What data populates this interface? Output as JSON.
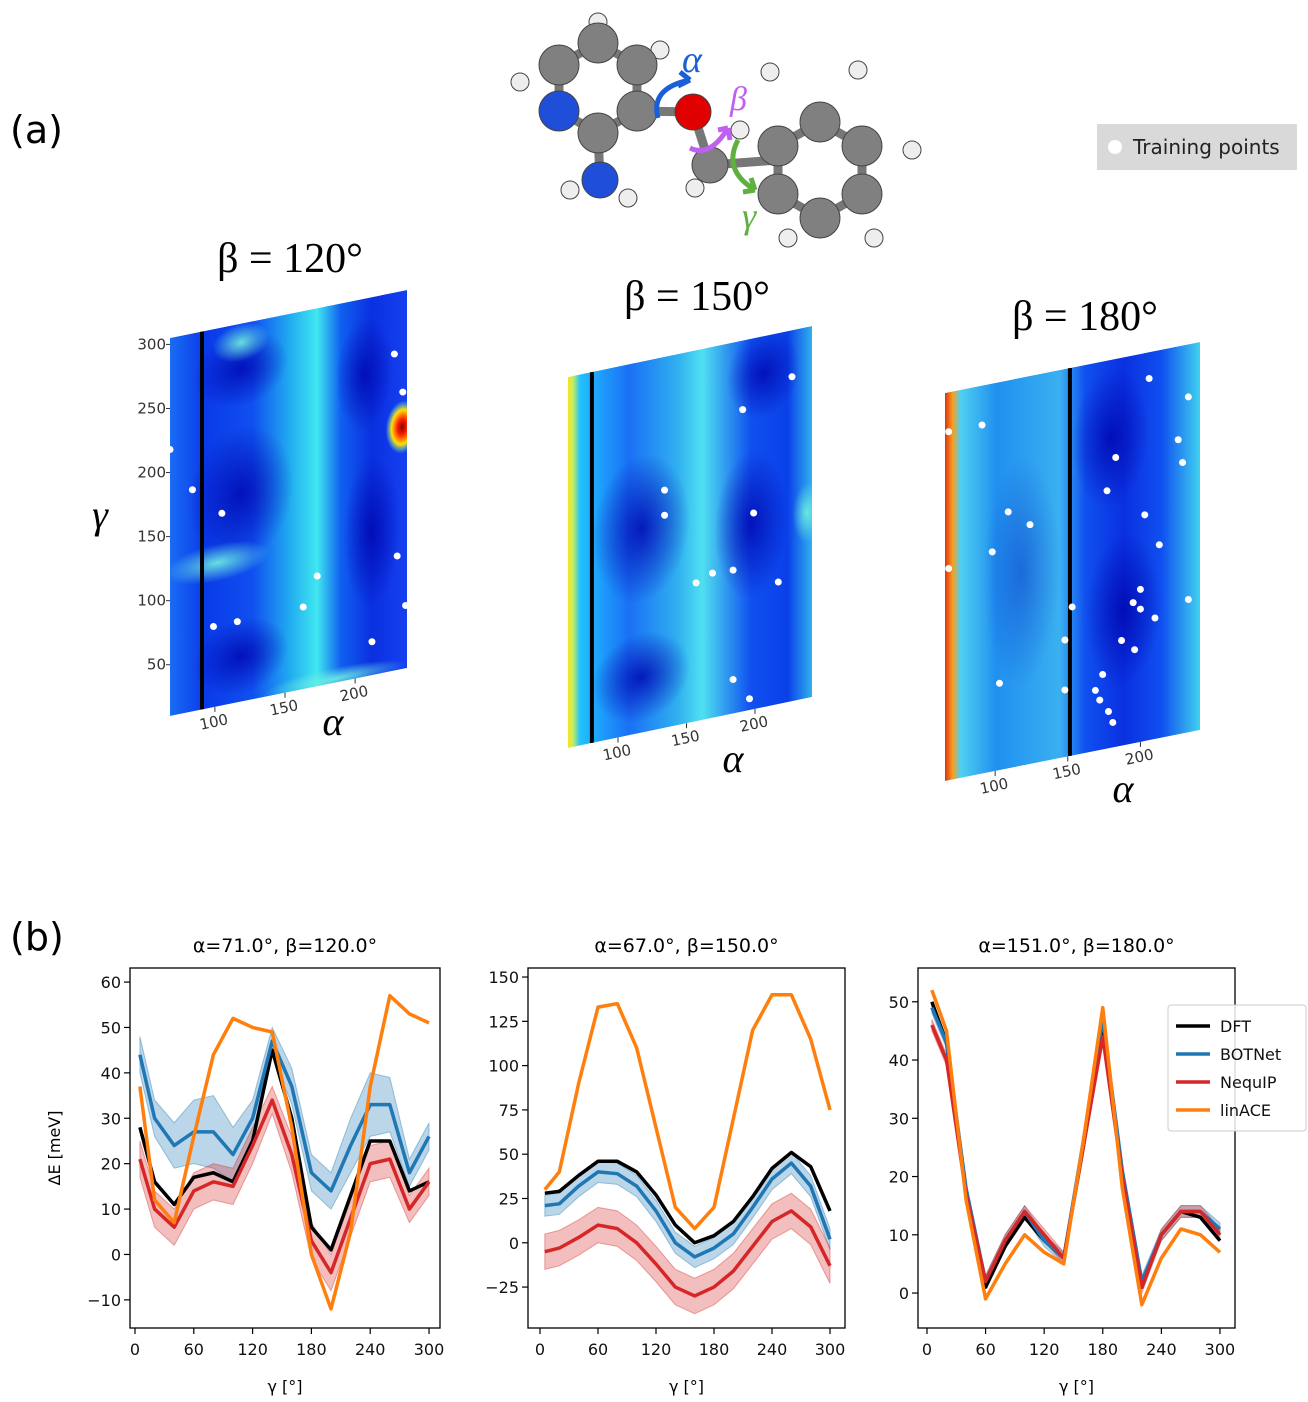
{
  "panel_labels": [
    "(a)",
    "(b)"
  ],
  "molecule": {
    "labels": [
      "α",
      "β",
      "γ"
    ]
  },
  "legend": "Training points",
  "chart_data": [
    {
      "type": "heatmap",
      "title": "β = 120°",
      "xlabel": "α",
      "ylabel": "γ",
      "xlim": [
        68,
        237
      ],
      "ylim": [
        10,
        305
      ],
      "xticks": [
        100,
        150,
        200
      ],
      "yticks": [
        50,
        100,
        150,
        200,
        250,
        300
      ],
      "points": {
        "x": [
          228,
          234,
          68,
          84,
          105,
          230,
          173,
          163,
          99,
          116,
          212,
          236
        ],
        "y": [
          257,
          226,
          218,
          183,
          160,
          99,
          96,
          74,
          73,
          73,
          36,
          59
        ]
      }
    },
    {
      "type": "heatmap",
      "title": "β = 150°",
      "xlabel": "α",
      "xlim": [
        63.5,
        241.6
      ],
      "ylim": [
        10,
        305
      ],
      "xticks": [
        100,
        150,
        200
      ],
      "points": {
        "x": [
          227,
          191,
          134,
          134,
          199,
          157,
          169,
          184,
          217,
          184,
          196
        ],
        "y": [
          268,
          250,
          199,
          179,
          166,
          120,
          125,
          124,
          107,
          37,
          19
        ]
      }
    },
    {
      "type": "heatmap",
      "title": "β = 180°",
      "xlabel": "α",
      "xlim": [
        65.5,
        241
      ],
      "ylim": [
        10,
        305
      ],
      "xticks": [
        100,
        150,
        200
      ],
      "points": {
        "x": [
          206,
          233,
          91,
          68,
          183,
          226,
          229,
          177,
          109,
          124,
          203,
          98,
          213,
          68,
          200,
          195,
          200,
          233,
          153,
          210,
          187,
          196,
          148,
          103,
          174,
          148,
          169,
          172,
          178,
          181
        ],
        "y": [
          285,
          265,
          275,
          275,
          230,
          234,
          216,
          206,
          205,
          192,
          182,
          177,
          157,
          171,
          126,
          117,
          111,
          111,
          123,
          102,
          90,
          81,
          99,
          76,
          67,
          61,
          56,
          48,
          38,
          29
        ]
      }
    },
    {
      "type": "line",
      "title": "α=71.0°, β=120.0°",
      "xlabel": "γ [°]",
      "ylabel": "ΔE [meV]",
      "x": [
        5,
        20,
        40,
        60,
        80,
        100,
        120,
        140,
        160,
        180,
        200,
        220,
        240,
        260,
        280,
        300
      ],
      "xlim": [
        -5.1,
        311.2
      ],
      "ylim": [
        -16.2,
        63.1
      ],
      "xticks": [
        0,
        60,
        120,
        180,
        240,
        300
      ],
      "yticks": [
        {
          "value": -10,
          "label": "−10"
        },
        0,
        10,
        20,
        30,
        40,
        50,
        60
      ],
      "series": [
        {
          "color": "#000000",
          "values": [
            28,
            16,
            11,
            17,
            18,
            16,
            25,
            45,
            30,
            6,
            1,
            13,
            25,
            25,
            14,
            16
          ]
        },
        {
          "color": "#1f77b4",
          "values": [
            44,
            30,
            24,
            27,
            27,
            22,
            30,
            47,
            37,
            18,
            14,
            24,
            33,
            33,
            18,
            26
          ],
          "error": [
            4,
            4,
            5,
            7,
            8,
            6,
            4,
            3,
            4,
            4,
            4,
            6,
            7,
            6,
            3,
            3
          ]
        },
        {
          "color": "#d62728",
          "values": [
            21,
            10,
            6,
            14,
            16,
            15,
            24,
            34,
            22,
            3,
            -4,
            8,
            20,
            21,
            10,
            16
          ],
          "error": [
            4,
            4,
            4,
            4,
            4,
            4,
            4,
            3,
            4,
            4,
            4,
            4,
            4,
            4,
            3,
            3
          ]
        },
        {
          "color": "#ff7f0e",
          "values": [
            37,
            12,
            7,
            26,
            44,
            52,
            50,
            49,
            28,
            0,
            -12,
            5,
            37,
            57,
            53,
            51
          ]
        }
      ]
    },
    {
      "type": "line",
      "title": "α=67.0°, β=150.0°",
      "xlabel": "γ [°]",
      "x": [
        5,
        20,
        40,
        60,
        80,
        100,
        120,
        140,
        160,
        180,
        200,
        220,
        240,
        260,
        280,
        300
      ],
      "xlim": [
        -12.4,
        315.5
      ],
      "ylim": [
        -48.1,
        155.1
      ],
      "xticks": [
        0,
        60,
        120,
        180,
        240,
        300
      ],
      "yticks": [
        {
          "value": -25,
          "label": "−25"
        },
        0,
        25,
        50,
        75,
        100,
        125,
        150
      ],
      "series": [
        {
          "color": "#000000",
          "values": [
            28,
            29,
            38,
            46,
            46,
            40,
            27,
            10,
            0,
            4,
            12,
            26,
            42,
            51,
            43,
            18
          ]
        },
        {
          "color": "#1f77b4",
          "values": [
            21,
            22,
            32,
            40,
            39,
            32,
            18,
            0,
            -8,
            -3,
            5,
            20,
            36,
            45,
            32,
            2
          ],
          "error": [
            6,
            6,
            6,
            6,
            6,
            6,
            6,
            6,
            6,
            6,
            6,
            6,
            6,
            6,
            6,
            6
          ]
        },
        {
          "color": "#d62728",
          "values": [
            -5,
            -3,
            3,
            10,
            8,
            0,
            -12,
            -25,
            -30,
            -25,
            -16,
            -2,
            12,
            18,
            9,
            -13
          ],
          "error": [
            10,
            10,
            10,
            10,
            10,
            10,
            10,
            10,
            10,
            10,
            10,
            10,
            10,
            10,
            10,
            10
          ]
        },
        {
          "color": "#ff7f0e",
          "values": [
            30,
            40,
            90,
            133,
            135,
            110,
            65,
            20,
            8,
            20,
            70,
            120,
            140,
            140,
            115,
            75
          ]
        }
      ]
    },
    {
      "type": "line",
      "title": "α=151.0°, β=180.0°",
      "xlabel": "γ [°]",
      "x": [
        5,
        20,
        40,
        60,
        80,
        100,
        120,
        140,
        160,
        180,
        200,
        220,
        240,
        260,
        280,
        300
      ],
      "xlim": [
        -9.2,
        315.4
      ],
      "ylim": [
        -6.0,
        55.8
      ],
      "xticks": [
        0,
        60,
        120,
        180,
        240,
        300
      ],
      "yticks": [
        0,
        10,
        20,
        30,
        40,
        50
      ],
      "legend": "right",
      "series": [
        {
          "name": "DFT",
          "color": "#000000",
          "values": [
            50,
            43,
            17,
            1,
            8,
            13,
            9,
            6,
            25,
            46,
            20,
            1,
            10,
            14,
            13,
            9
          ]
        },
        {
          "name": "BOTNet",
          "color": "#1f77b4",
          "values": [
            49,
            43,
            18,
            2,
            9,
            14,
            9,
            6,
            26,
            47,
            21,
            2,
            10,
            14,
            14,
            11
          ],
          "error": [
            1,
            1,
            1,
            1,
            1,
            1,
            1,
            1,
            1,
            1,
            1,
            1,
            1,
            1,
            1,
            1
          ]
        },
        {
          "name": "NequIP",
          "color": "#d62728",
          "values": [
            46,
            40,
            17,
            2,
            9,
            14,
            10,
            6,
            25,
            44,
            20,
            1,
            10,
            14,
            14,
            10
          ],
          "error": [
            1,
            1,
            1,
            1,
            1,
            1,
            1,
            1,
            1,
            1,
            1,
            1,
            1,
            1,
            1,
            1
          ]
        },
        {
          "name": "linACE",
          "color": "#ff7f0e",
          "values": [
            52,
            45,
            16,
            -1,
            5,
            10,
            7,
            5,
            26,
            49,
            18,
            -2,
            6,
            11,
            10,
            7
          ]
        }
      ]
    }
  ]
}
